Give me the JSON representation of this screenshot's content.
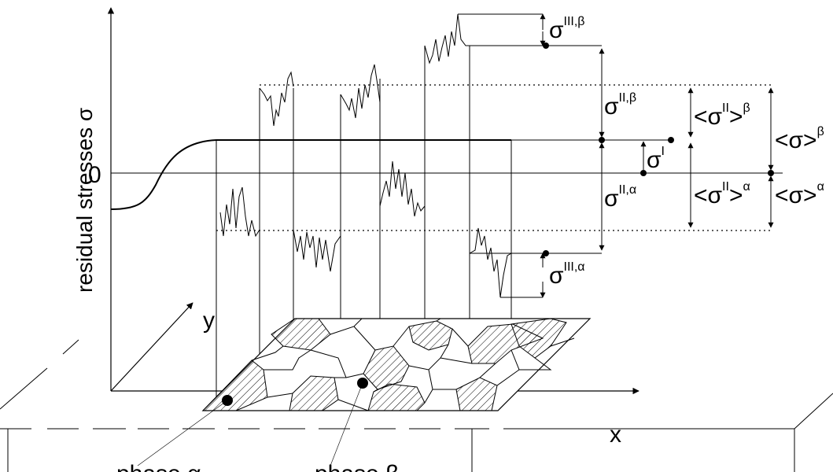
{
  "axes": {
    "y_title": "residual stresses σ",
    "zero_label": "0",
    "x_label": "x",
    "y_label": "y"
  },
  "annotations": {
    "sigma_III_beta": {
      "base": "σ",
      "sup": "III,β"
    },
    "sigma_II_beta": {
      "base": "σ",
      "sup": "II,β"
    },
    "sigma_I": {
      "base": "σ",
      "sup": "I"
    },
    "sigma_II_alpha": {
      "base": "σ",
      "sup": "II,α"
    },
    "sigma_III_alpha": {
      "base": "σ",
      "sup": "III,α"
    },
    "mean_II_beta": {
      "base": "<σ",
      "mid": "II",
      "end": ">",
      "sup": "β"
    },
    "mean_II_alpha": {
      "base": "<σ",
      "mid": "II",
      "end": ">",
      "sup": "α"
    },
    "mean_beta": {
      "base": "<σ>",
      "sup": "β"
    },
    "mean_alpha": {
      "base": "<σ>",
      "sup": "α"
    }
  },
  "phases": {
    "alpha": "phase α",
    "beta": "phase β"
  }
}
